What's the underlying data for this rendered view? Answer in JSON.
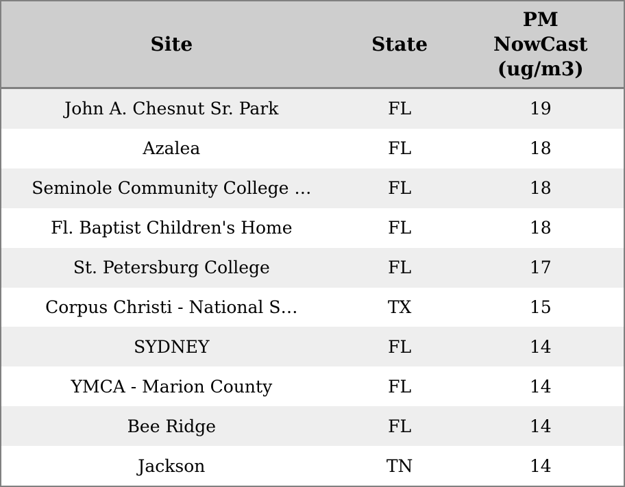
{
  "colors": {
    "header_bg": "#cecece",
    "border": "#808080",
    "row_alt_bg": "#eeeeee",
    "row_bg": "#ffffff",
    "text": "#000000"
  },
  "table": {
    "columns": [
      {
        "key": "site",
        "label": "Site"
      },
      {
        "key": "state",
        "label": "State"
      },
      {
        "key": "pm",
        "label": "PM\nNowCast\n(ug/m3)"
      }
    ],
    "rows": [
      {
        "site": "John A. Chesnut Sr. Park",
        "state": "FL",
        "pm": "19"
      },
      {
        "site": "Azalea",
        "state": "FL",
        "pm": "18"
      },
      {
        "site": "Seminole Community College …",
        "state": "FL",
        "pm": "18"
      },
      {
        "site": "Fl. Baptist Children's Home",
        "state": "FL",
        "pm": "18"
      },
      {
        "site": "St. Petersburg College",
        "state": "FL",
        "pm": "17"
      },
      {
        "site": "Corpus Christi - National S…",
        "state": "TX",
        "pm": "15"
      },
      {
        "site": "SYDNEY",
        "state": "FL",
        "pm": "14"
      },
      {
        "site": "YMCA - Marion County",
        "state": "FL",
        "pm": "14"
      },
      {
        "site": "Bee Ridge",
        "state": "FL",
        "pm": "14"
      },
      {
        "site": "Jackson",
        "state": "TN",
        "pm": "14"
      }
    ]
  },
  "chart_data": {
    "type": "table",
    "title": "",
    "columns": [
      "Site",
      "State",
      "PM NowCast (ug/m3)"
    ],
    "rows": [
      [
        "John A. Chesnut Sr. Park",
        "FL",
        19
      ],
      [
        "Azalea",
        "FL",
        18
      ],
      [
        "Seminole Community College …",
        "FL",
        18
      ],
      [
        "Fl. Baptist Children's Home",
        "FL",
        18
      ],
      [
        "St. Petersburg College",
        "FL",
        17
      ],
      [
        "Corpus Christi - National S…",
        "TX",
        15
      ],
      [
        "SYDNEY",
        "FL",
        14
      ],
      [
        "YMCA - Marion County",
        "FL",
        14
      ],
      [
        "Bee Ridge",
        "FL",
        14
      ],
      [
        "Jackson",
        "TN",
        14
      ]
    ]
  }
}
